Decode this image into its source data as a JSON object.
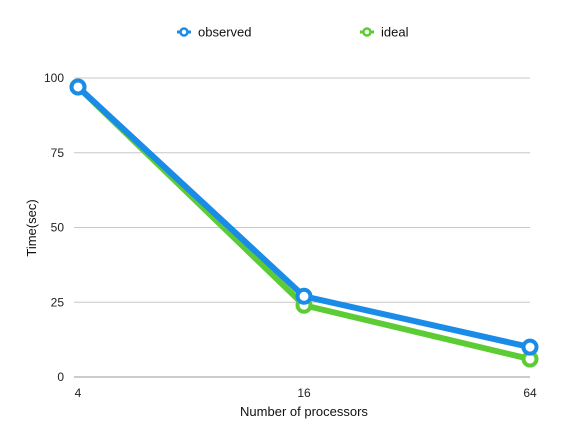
{
  "chart_data": {
    "type": "line",
    "title": "",
    "xlabel": "Number of processors",
    "ylabel": "Time(sec)",
    "categories": [
      "4",
      "16",
      "64"
    ],
    "series": [
      {
        "name": "observed",
        "color": "#1a8ce8",
        "values": [
          97,
          27,
          10
        ]
      },
      {
        "name": "ideal",
        "color": "#5ccc34",
        "values": [
          97,
          24,
          6
        ]
      }
    ],
    "ylim": [
      0,
      100
    ],
    "yticks": [
      "0",
      "25",
      "50",
      "75",
      "100"
    ],
    "grid": true,
    "legend": "top-center"
  }
}
